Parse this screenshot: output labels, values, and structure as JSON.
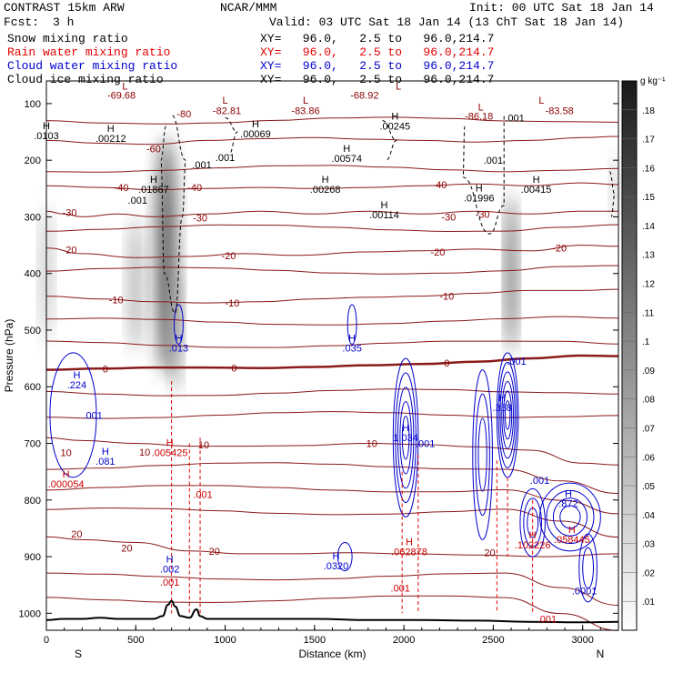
{
  "header": {
    "model": "CONTRAST 15km ARW",
    "center": "NCAR/MMM",
    "init": "Init: 00 UTC Sat 18 Jan 14",
    "fcst_label": "Fcst:",
    "fcst_value": "3 h",
    "valid": "Valid: 03 UTC Sat 18 Jan 14 (13 ChT Sat 18 Jan 14)"
  },
  "fields": [
    {
      "name": "Snow mixing ratio",
      "color": "#000000",
      "xy": "XY=   96.0,   2.5 to   96.0,214.7"
    },
    {
      "name": "Rain water mixing ratio",
      "color": "#e00000",
      "xy": "XY=   96.0,   2.5 to   96.0,214.7"
    },
    {
      "name": "Cloud water mixing ratio",
      "color": "#0000cc",
      "xy": "XY=   96.0,   2.5 to   96.0,214.7"
    },
    {
      "name": "Cloud ice mixing ratio",
      "color": "#000000",
      "xy": "XY=   96.0,   2.5 to   96.0,214.7"
    }
  ],
  "chart_data": {
    "type": "cross-section contour",
    "xlabel": "Distance (km)",
    "ylabel": "Pressure (hPa)",
    "xlim": [
      0,
      3200
    ],
    "ylim": [
      1030,
      60
    ],
    "x_ticks": [
      0,
      500,
      1000,
      1500,
      2000,
      2500,
      3000
    ],
    "y_ticks": [
      100,
      200,
      300,
      400,
      500,
      600,
      700,
      800,
      900,
      1000
    ],
    "direction_left": "S",
    "direction_right": "N",
    "colorbar_unit": "g kg⁻¹",
    "colorbar_ticks": [
      ".01",
      ".02",
      ".03",
      ".04",
      ".05",
      ".06",
      ".07",
      ".08",
      ".09",
      ".1",
      ".11",
      ".12",
      ".13",
      ".14",
      ".15",
      ".16",
      ".17",
      ".18"
    ],
    "temperature_contours": [
      {
        "label": "-30",
        "points": [
          [
            0,
            290
          ],
          [
            100,
            295
          ],
          [
            200,
            300
          ],
          [
            400,
            295
          ],
          [
            600,
            300
          ],
          [
            900,
            295
          ],
          [
            1200,
            290
          ],
          [
            1500,
            295
          ],
          [
            1800,
            290
          ],
          [
            2100,
            295
          ],
          [
            2400,
            290
          ],
          [
            2700,
            295
          ],
          [
            3000,
            290
          ],
          [
            3200,
            290
          ]
        ]
      },
      {
        "label": "-20",
        "points": [
          [
            0,
            355
          ],
          [
            200,
            365
          ],
          [
            500,
            372
          ],
          [
            800,
            370
          ],
          [
            1100,
            365
          ],
          [
            1400,
            368
          ],
          [
            1800,
            362
          ],
          [
            2100,
            360
          ],
          [
            2400,
            357
          ],
          [
            2700,
            360
          ],
          [
            3000,
            350
          ],
          [
            3200,
            352
          ]
        ]
      },
      {
        "label": "-10",
        "points": [
          [
            0,
            440
          ],
          [
            300,
            445
          ],
          [
            600,
            450
          ],
          [
            900,
            452
          ],
          [
            1200,
            450
          ],
          [
            1500,
            445
          ],
          [
            1800,
            442
          ],
          [
            2100,
            440
          ],
          [
            2400,
            435
          ],
          [
            2700,
            430
          ],
          [
            3000,
            430
          ],
          [
            3200,
            428
          ]
        ]
      },
      {
        "label": "0",
        "points": [
          [
            0,
            570
          ],
          [
            300,
            568
          ],
          [
            600,
            566
          ],
          [
            900,
            566
          ],
          [
            1200,
            567
          ],
          [
            1500,
            565
          ],
          [
            1800,
            562
          ],
          [
            2100,
            560
          ],
          [
            2400,
            556
          ],
          [
            2700,
            550
          ],
          [
            3000,
            545
          ],
          [
            3200,
            546
          ]
        ]
      },
      {
        "label": "10",
        "points": [
          [
            0,
            690
          ],
          [
            200,
            695
          ],
          [
            500,
            700
          ],
          [
            800,
            705
          ],
          [
            1100,
            705
          ],
          [
            1400,
            704
          ],
          [
            1800,
            700
          ],
          [
            2100,
            702
          ],
          [
            2400,
            706
          ],
          [
            2700,
            712
          ],
          [
            3000,
            735
          ],
          [
            3200,
            738
          ]
        ]
      },
      {
        "label": "20",
        "points": [
          [
            0,
            865
          ],
          [
            200,
            870
          ],
          [
            500,
            875
          ],
          [
            800,
            890
          ],
          [
            1100,
            895
          ],
          [
            1400,
            895
          ],
          [
            1700,
            893
          ],
          [
            2000,
            895
          ],
          [
            2400,
            897
          ],
          [
            2800,
            900
          ],
          [
            3200,
            895
          ]
        ]
      },
      {
        "label": "-40",
        "points": [
          [
            0,
            245
          ],
          [
            300,
            248
          ],
          [
            600,
            252
          ],
          [
            900,
            250
          ],
          [
            1200,
            248
          ],
          [
            1500,
            250
          ],
          [
            1800,
            248
          ],
          [
            2100,
            245
          ],
          [
            2400,
            242
          ],
          [
            2700,
            245
          ],
          [
            3000,
            240
          ],
          [
            3200,
            243
          ]
        ]
      },
      {
        "label": "-60",
        "points": [
          [
            0,
            165
          ],
          [
            300,
            170
          ],
          [
            600,
            172
          ],
          [
            900,
            165
          ],
          [
            1200,
            162
          ],
          [
            1500,
            160
          ],
          [
            1800,
            163
          ],
          [
            2100,
            165
          ],
          [
            2400,
            168
          ],
          [
            2700,
            165
          ],
          [
            3000,
            160
          ],
          [
            3200,
            158
          ]
        ]
      }
    ],
    "temperature_labels": [
      {
        "text": "-69.68",
        "x": 420,
        "p": 85
      },
      {
        "text": "-68.92",
        "x": 1780,
        "p": 85
      },
      {
        "text": "-82.81",
        "x": 1010,
        "p": 112
      },
      {
        "text": "-83.86",
        "x": 1450,
        "p": 112
      },
      {
        "text": "-86.18",
        "x": 2420,
        "p": 122
      },
      {
        "text": "-83.58",
        "x": 2870,
        "p": 112
      },
      {
        "text": "-80",
        "x": 770,
        "p": 118
      },
      {
        "text": "-60",
        "x": 600,
        "p": 180
      },
      {
        "text": "-40",
        "x": 420,
        "p": 248
      },
      {
        "text": "-40",
        "x": 830,
        "p": 248
      },
      {
        "text": "-40",
        "x": 2200,
        "p": 243
      },
      {
        "text": "-30",
        "x": 130,
        "p": 292
      },
      {
        "text": "-30",
        "x": 860,
        "p": 302
      },
      {
        "text": "-30",
        "x": 2250,
        "p": 300
      },
      {
        "text": "-30",
        "x": 2440,
        "p": 295
      },
      {
        "text": "-20",
        "x": 130,
        "p": 358
      },
      {
        "text": "-20",
        "x": 1020,
        "p": 368
      },
      {
        "text": "-20",
        "x": 2190,
        "p": 362
      },
      {
        "text": "-20",
        "x": 2870,
        "p": 355
      },
      {
        "text": "-10",
        "x": 390,
        "p": 446
      },
      {
        "text": "-10",
        "x": 1040,
        "p": 452
      },
      {
        "text": "-10",
        "x": 2240,
        "p": 440
      },
      {
        "text": "0",
        "x": 330,
        "p": 568
      },
      {
        "text": "0",
        "x": 1050,
        "p": 567
      },
      {
        "text": "0",
        "x": 2240,
        "p": 558
      },
      {
        "text": "10",
        "x": 110,
        "p": 716
      },
      {
        "text": "10",
        "x": 550,
        "p": 715
      },
      {
        "text": "10",
        "x": 880,
        "p": 702
      },
      {
        "text": "10",
        "x": 1820,
        "p": 700
      },
      {
        "text": "20",
        "x": 170,
        "p": 860
      },
      {
        "text": "20",
        "x": 450,
        "p": 885
      },
      {
        "text": "20",
        "x": 940,
        "p": 890
      },
      {
        "text": "20",
        "x": 2480,
        "p": 893
      }
    ],
    "extrema": [
      {
        "kind": "L",
        "color": "#8b0000",
        "x": 440,
        "p": 75
      },
      {
        "kind": "L",
        "color": "#8b0000",
        "x": 1000,
        "p": 100
      },
      {
        "kind": "L",
        "color": "#8b0000",
        "x": 1450,
        "p": 100
      },
      {
        "kind": "L",
        "color": "#8b0000",
        "x": 1970,
        "p": 75
      },
      {
        "kind": "L",
        "color": "#8b0000",
        "x": 2430,
        "p": 112
      },
      {
        "kind": "L",
        "color": "#8b0000",
        "x": 2770,
        "p": 100
      },
      {
        "kind": "H",
        "color": "#000000",
        "x": 360,
        "p": 150,
        "value": ".00212"
      },
      {
        "kind": "H",
        "color": "#000000",
        "x": 0,
        "p": 145,
        "value": ".0103"
      },
      {
        "kind": "H",
        "color": "#000000",
        "x": 1170,
        "p": 142,
        "value": ".00069"
      },
      {
        "kind": "H",
        "color": "#000000",
        "x": 1950,
        "p": 128,
        "value": ".00245"
      },
      {
        "kind": "H",
        "color": "#000000",
        "x": 1680,
        "p": 185,
        "value": ".00574"
      },
      {
        "kind": "H",
        "color": "#000000",
        "x": 600,
        "p": 240,
        "value": ".01867"
      },
      {
        "kind": "H",
        "color": "#000000",
        "x": 1560,
        "p": 240,
        "value": ".00268"
      },
      {
        "kind": "H",
        "color": "#000000",
        "x": 1890,
        "p": 285,
        "value": ".00114"
      },
      {
        "kind": "H",
        "color": "#000000",
        "x": 2420,
        "p": 255,
        "value": ".01996"
      },
      {
        "kind": "H",
        "color": "#000000",
        "x": 2740,
        "p": 240,
        "value": ".00415"
      },
      {
        "kind": "H",
        "color": "#0000cc",
        "x": 740,
        "p": 520,
        "value": ".013"
      },
      {
        "kind": "H",
        "color": "#0000cc",
        "x": 1710,
        "p": 520,
        "value": ".035"
      },
      {
        "kind": "H",
        "color": "#0000cc",
        "x": 170,
        "p": 585,
        "value": ".224"
      },
      {
        "kind": "H",
        "color": "#0000cc",
        "x": 2550,
        "p": 625,
        "value": ".358"
      },
      {
        "kind": "H",
        "color": "#0000cc",
        "x": 2010,
        "p": 678,
        "value": "1.034"
      },
      {
        "kind": "H",
        "color": "#0000cc",
        "x": 330,
        "p": 720,
        "value": ".081"
      },
      {
        "kind": "H",
        "color": "#0000cc",
        "x": 2920,
        "p": 795,
        "value": ".872"
      },
      {
        "kind": "H",
        "color": "#0000cc",
        "x": 1620,
        "p": 905,
        "value": ".0320"
      },
      {
        "kind": "H",
        "color": "#0000cc",
        "x": 690,
        "p": 910,
        "value": ".002"
      },
      {
        "kind": "H",
        "color": "#cc0000",
        "x": 690,
        "p": 705,
        "value": ".005425"
      },
      {
        "kind": "H",
        "color": "#cc0000",
        "x": 110,
        "p": 760,
        "value": ".000054"
      },
      {
        "kind": "H",
        "color": "#cc0000",
        "x": 2030,
        "p": 880,
        "value": ".062878"
      },
      {
        "kind": "H",
        "color": "#cc0000",
        "x": 2720,
        "p": 868,
        "value": ".102226"
      },
      {
        "kind": "H",
        "color": "#cc0000",
        "x": 2940,
        "p": 858,
        "value": ".058445"
      }
    ],
    "small_labels": [
      {
        "text": ".001",
        "x": 1000,
        "p": 195,
        "color": "#000000"
      },
      {
        "text": ".001",
        "x": 870,
        "p": 208,
        "color": "#000000"
      },
      {
        "text": ".001",
        "x": 510,
        "p": 270,
        "color": "#000000"
      },
      {
        "text": ".001",
        "x": 2500,
        "p": 200,
        "color": "#000000"
      },
      {
        "text": ".001",
        "x": 2620,
        "p": 125,
        "color": "#000000"
      },
      {
        "text": ".001",
        "x": 260,
        "p": 650,
        "color": "#0000cc"
      },
      {
        "text": ".001",
        "x": 2120,
        "p": 700,
        "color": "#0000cc"
      },
      {
        "text": ".001",
        "x": 2630,
        "p": 555,
        "color": "#0000cc"
      },
      {
        "text": ".001",
        "x": 2760,
        "p": 765,
        "color": "#0000cc"
      },
      {
        "text": ".0001",
        "x": 3010,
        "p": 960,
        "color": "#0000cc"
      },
      {
        "text": ".001",
        "x": 875,
        "p": 790,
        "color": "#cc0000"
      },
      {
        "text": ".001",
        "x": 1980,
        "p": 955,
        "color": "#cc0000"
      },
      {
        "text": ".001",
        "x": 2800,
        "p": 1010,
        "color": "#cc0000"
      },
      {
        "text": ".001",
        "x": 690,
        "p": 945,
        "color": "#cc0000"
      }
    ],
    "snow_shading": [
      {
        "x": 500,
        "p": 420,
        "rx": 40,
        "rp": 120,
        "value": 0.06
      },
      {
        "x": 670,
        "p": 370,
        "rx": 60,
        "rp": 210,
        "value": 0.12
      },
      {
        "x": 720,
        "p": 500,
        "rx": 30,
        "rp": 110,
        "value": 0.08
      },
      {
        "x": 0,
        "p": 400,
        "rx": 30,
        "rp": 120,
        "value": 0.05
      },
      {
        "x": 2600,
        "p": 400,
        "rx": 28,
        "rp": 140,
        "value": 0.13
      },
      {
        "x": 3180,
        "p": 250,
        "rx": 20,
        "rp": 60,
        "value": 0.05
      }
    ],
    "terrain": [
      [
        0,
        1012
      ],
      [
        100,
        1010
      ],
      [
        200,
        1010
      ],
      [
        300,
        1008
      ],
      [
        400,
        1010
      ],
      [
        500,
        1010
      ],
      [
        600,
        1010
      ],
      [
        650,
        1005
      ],
      [
        680,
        985
      ],
      [
        700,
        978
      ],
      [
        720,
        988
      ],
      [
        750,
        1005
      ],
      [
        800,
        1008
      ],
      [
        840,
        993
      ],
      [
        860,
        1005
      ],
      [
        900,
        1010
      ],
      [
        1200,
        1010
      ],
      [
        1500,
        1010
      ],
      [
        1800,
        1012
      ],
      [
        2100,
        1012
      ],
      [
        2400,
        1013
      ],
      [
        2700,
        1015
      ],
      [
        3000,
        1016
      ],
      [
        3200,
        1015
      ]
    ]
  }
}
